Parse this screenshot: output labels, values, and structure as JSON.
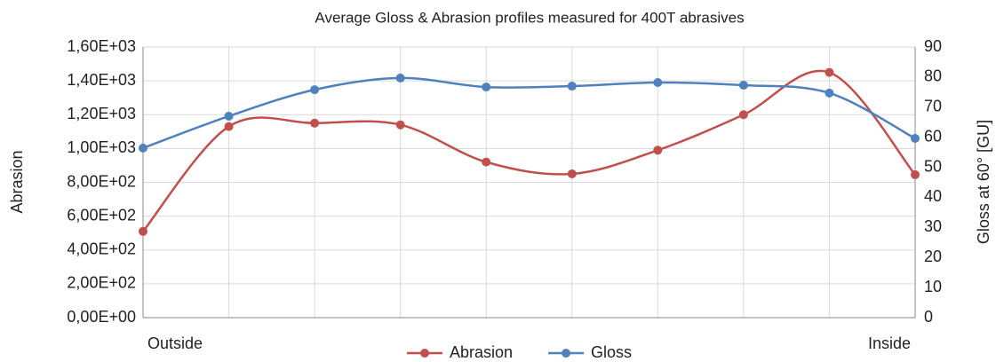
{
  "chart_data": {
    "type": "line",
    "title": "Average Gloss & Abrasion profiles measured for 400T abrasives",
    "y_label": "Abrasion",
    "y2_label": "Gloss at 60°  [GU]",
    "categories": [
      "Outside",
      null,
      null,
      null,
      null,
      null,
      null,
      null,
      null,
      "Inside"
    ],
    "series": [
      {
        "name": "Abrasion",
        "color": "#c0504d",
        "values": [
          510,
          1130,
          1150,
          1140,
          920,
          850,
          990,
          1200,
          1450,
          845
        ]
      },
      {
        "name": "Gloss",
        "color": "#4f81bd",
        "axis": "y2",
        "values": [
          56.4,
          67.0,
          75.8,
          79.7,
          76.7,
          77.0,
          78.2,
          77.3,
          74.7,
          59.6
        ]
      }
    ],
    "ylim": [
      0,
      1600
    ],
    "yticks": [
      {
        "value": 0,
        "label": "0,00E+00"
      },
      {
        "value": 200,
        "label": "2,00E+02"
      },
      {
        "value": 400,
        "label": "4,00E+02"
      },
      {
        "value": 600,
        "label": "6,00E+02"
      },
      {
        "value": 800,
        "label": "8,00E+02"
      },
      {
        "value": 1000,
        "label": "1,00E+03"
      },
      {
        "value": 1200,
        "label": "1,20E+03"
      },
      {
        "value": 1400,
        "label": "1,40E+03"
      },
      {
        "value": 1600,
        "label": "1,60E+03"
      }
    ],
    "y2lim": [
      0,
      90
    ],
    "y2ticks": [
      0,
      10,
      20,
      30,
      40,
      50,
      60,
      70,
      80,
      90
    ],
    "grid": true,
    "legend": "bottom",
    "smooth": true
  }
}
